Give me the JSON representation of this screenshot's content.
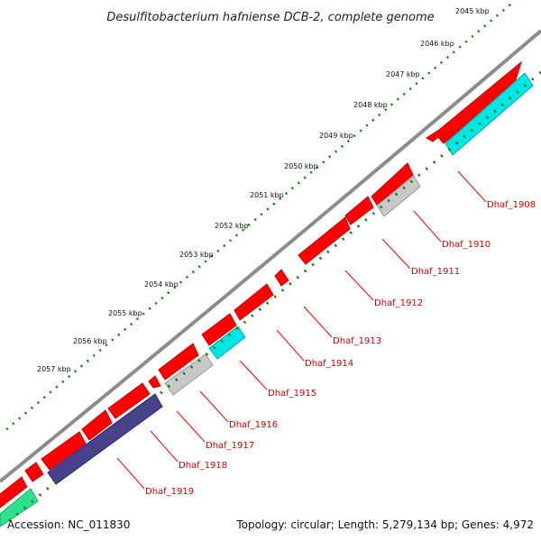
{
  "title": "Desulfitobacterium hafniense DCB-2, complete genome",
  "footer": {
    "accession": "Accession: NC_011830",
    "summary": "Topology: circular; Length: 5,279,134 bp; Genes: 4,972"
  },
  "colors": {
    "backbone": "#8a8a8a",
    "forward_cds": "#ff0000",
    "reverse_cds": "#ff0000",
    "cyan": "#00e5e5",
    "gray": "#c8c8c8",
    "purple": "#4b3f8f",
    "green": "#2fe08f",
    "tick": "#008000",
    "label_line": "#ff0000"
  },
  "kbp_labels": [
    "2045 kbp",
    "2046 kbp",
    "2047 kbp",
    "2048 kbp",
    "2049 kbp",
    "2050 kbp",
    "2051 kbp",
    "2052 kbp",
    "2053 kbp",
    "2054 kbp",
    "2055 kbp",
    "2056 kbp",
    "2057 kbp"
  ],
  "gene_labels": [
    "Dhaf_1908",
    "Dhaf_1910",
    "Dhaf_1911",
    "Dhaf_1912",
    "Dhaf_1913",
    "Dhaf_1914",
    "Dhaf_1915",
    "Dhaf_1916",
    "Dhaf_1917",
    "Dhaf_1918",
    "Dhaf_1919"
  ]
}
